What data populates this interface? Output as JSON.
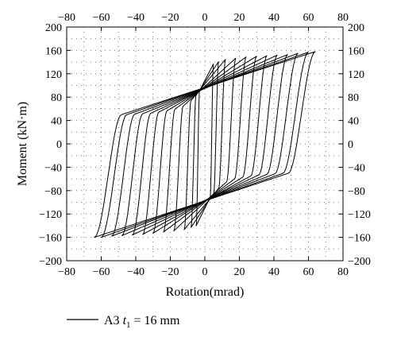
{
  "chart_data": {
    "type": "line",
    "title": "",
    "xlabel": "Rotation(mrad)",
    "ylabel": "Moment (kN·m)",
    "xlim": [
      -80,
      80
    ],
    "ylim": [
      -200,
      200
    ],
    "x_ticks": [
      -80,
      -60,
      -40,
      -20,
      0,
      20,
      40,
      60,
      80
    ],
    "y_ticks": [
      -200,
      -160,
      -120,
      -80,
      -40,
      0,
      40,
      80,
      120,
      160,
      200
    ],
    "grid": "dotted",
    "legend_position": "bottom-left",
    "line_color": "#000000",
    "series": [
      {
        "name": "A3 t1 = 16 mm",
        "legend": {
          "main": "A3 ",
          "var": "t",
          "sub": "1",
          "rest": " = 16 mm"
        },
        "loops": [
          {
            "amp": 5,
            "peak_pos": 137,
            "peak_neg": -140,
            "yld_pos": 80,
            "yld_neg": -80
          },
          {
            "amp": 8,
            "peak_pos": 141,
            "peak_neg": -143,
            "yld_pos": 70,
            "yld_neg": -72
          },
          {
            "amp": 12,
            "peak_pos": 145,
            "peak_neg": -147,
            "yld_pos": 60,
            "yld_neg": -62
          },
          {
            "amp": 18,
            "peak_pos": 147,
            "peak_neg": -149,
            "yld_pos": 50,
            "yld_neg": -50
          },
          {
            "amp": 24,
            "peak_pos": 149,
            "peak_neg": -151,
            "yld_pos": 45,
            "yld_neg": -45
          },
          {
            "amp": 30,
            "peak_pos": 150,
            "peak_neg": -153,
            "yld_pos": 42,
            "yld_neg": -42
          },
          {
            "amp": 36,
            "peak_pos": 151,
            "peak_neg": -155,
            "yld_pos": 40,
            "yld_neg": -40
          },
          {
            "amp": 42,
            "peak_pos": 152,
            "peak_neg": -156,
            "yld_pos": 38,
            "yld_neg": -38
          },
          {
            "amp": 48,
            "peak_pos": 153,
            "peak_neg": -157,
            "yld_pos": 37,
            "yld_neg": -37
          },
          {
            "amp": 54,
            "peak_pos": 155,
            "peak_neg": -158,
            "yld_pos": 36,
            "yld_neg": -36
          },
          {
            "amp": 60,
            "peak_pos": 157,
            "peak_neg": -160,
            "yld_pos": 35,
            "yld_neg": -35
          },
          {
            "amp": 64,
            "peak_pos": 158,
            "peak_neg": -160,
            "yld_pos": 35,
            "yld_neg": -35
          }
        ]
      }
    ]
  }
}
